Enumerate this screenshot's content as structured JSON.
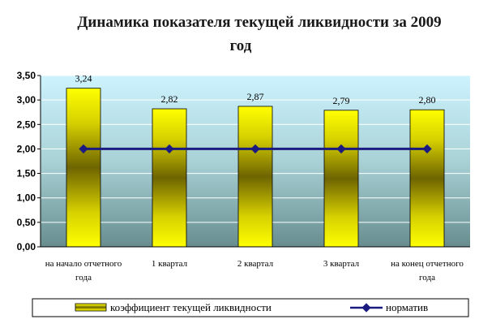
{
  "chart_data": {
    "type": "bar",
    "title_line1": "Динамика показателя текущей ликвидности за 2009",
    "title_line2": "год",
    "categories": [
      [
        "на начало отчетного",
        "года"
      ],
      [
        "1 квартал"
      ],
      [
        "2 квартал"
      ],
      [
        "3 квартал"
      ],
      [
        "на конец отчетного",
        "года"
      ]
    ],
    "series": [
      {
        "name": "коэффициент текущей ликвидности",
        "type": "bar",
        "values": [
          3.24,
          2.82,
          2.87,
          2.79,
          2.8
        ],
        "labels": [
          "3,24",
          "2,82",
          "2,87",
          "2,79",
          "2,80"
        ],
        "color": "#e8e800"
      },
      {
        "name": "норматив",
        "type": "line",
        "values": [
          2.0,
          2.0,
          2.0,
          2.0,
          2.0
        ],
        "color": "#1a1a80"
      }
    ],
    "ylim": [
      0,
      3.5
    ],
    "yticks": [
      "0,00",
      "0,50",
      "1,00",
      "1,50",
      "2,00",
      "2,50",
      "3,00",
      "3,50"
    ],
    "grid": true,
    "legend_position": "bottom"
  }
}
